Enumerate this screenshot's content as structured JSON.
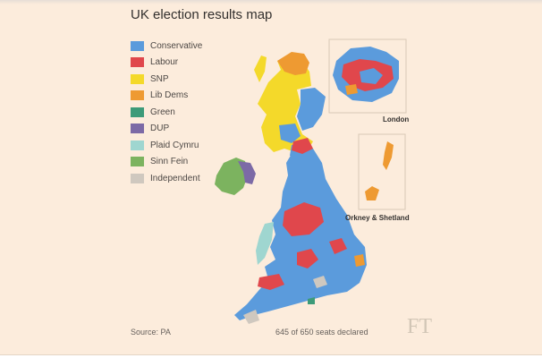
{
  "title": "UK election results map",
  "legend": [
    {
      "label": "Conservative",
      "color": "#5b9bdc"
    },
    {
      "label": "Labour",
      "color": "#e0474c"
    },
    {
      "label": "SNP",
      "color": "#f4d92a"
    },
    {
      "label": "Lib Dems",
      "color": "#ee9a32"
    },
    {
      "label": "Green",
      "color": "#3d9b79"
    },
    {
      "label": "DUP",
      "color": "#7c6aa6"
    },
    {
      "label": "Plaid Cymru",
      "color": "#9fd6d0"
    },
    {
      "label": "Sinn Fein",
      "color": "#7cb35f"
    },
    {
      "label": "Independent",
      "color": "#cfc8bf"
    }
  ],
  "insets": {
    "london_label": "London",
    "orkney_label": "Orkney & Shetland"
  },
  "footer": {
    "source": "Source: PA",
    "seats": "645 of 650 seats declared",
    "logo": "FT"
  }
}
